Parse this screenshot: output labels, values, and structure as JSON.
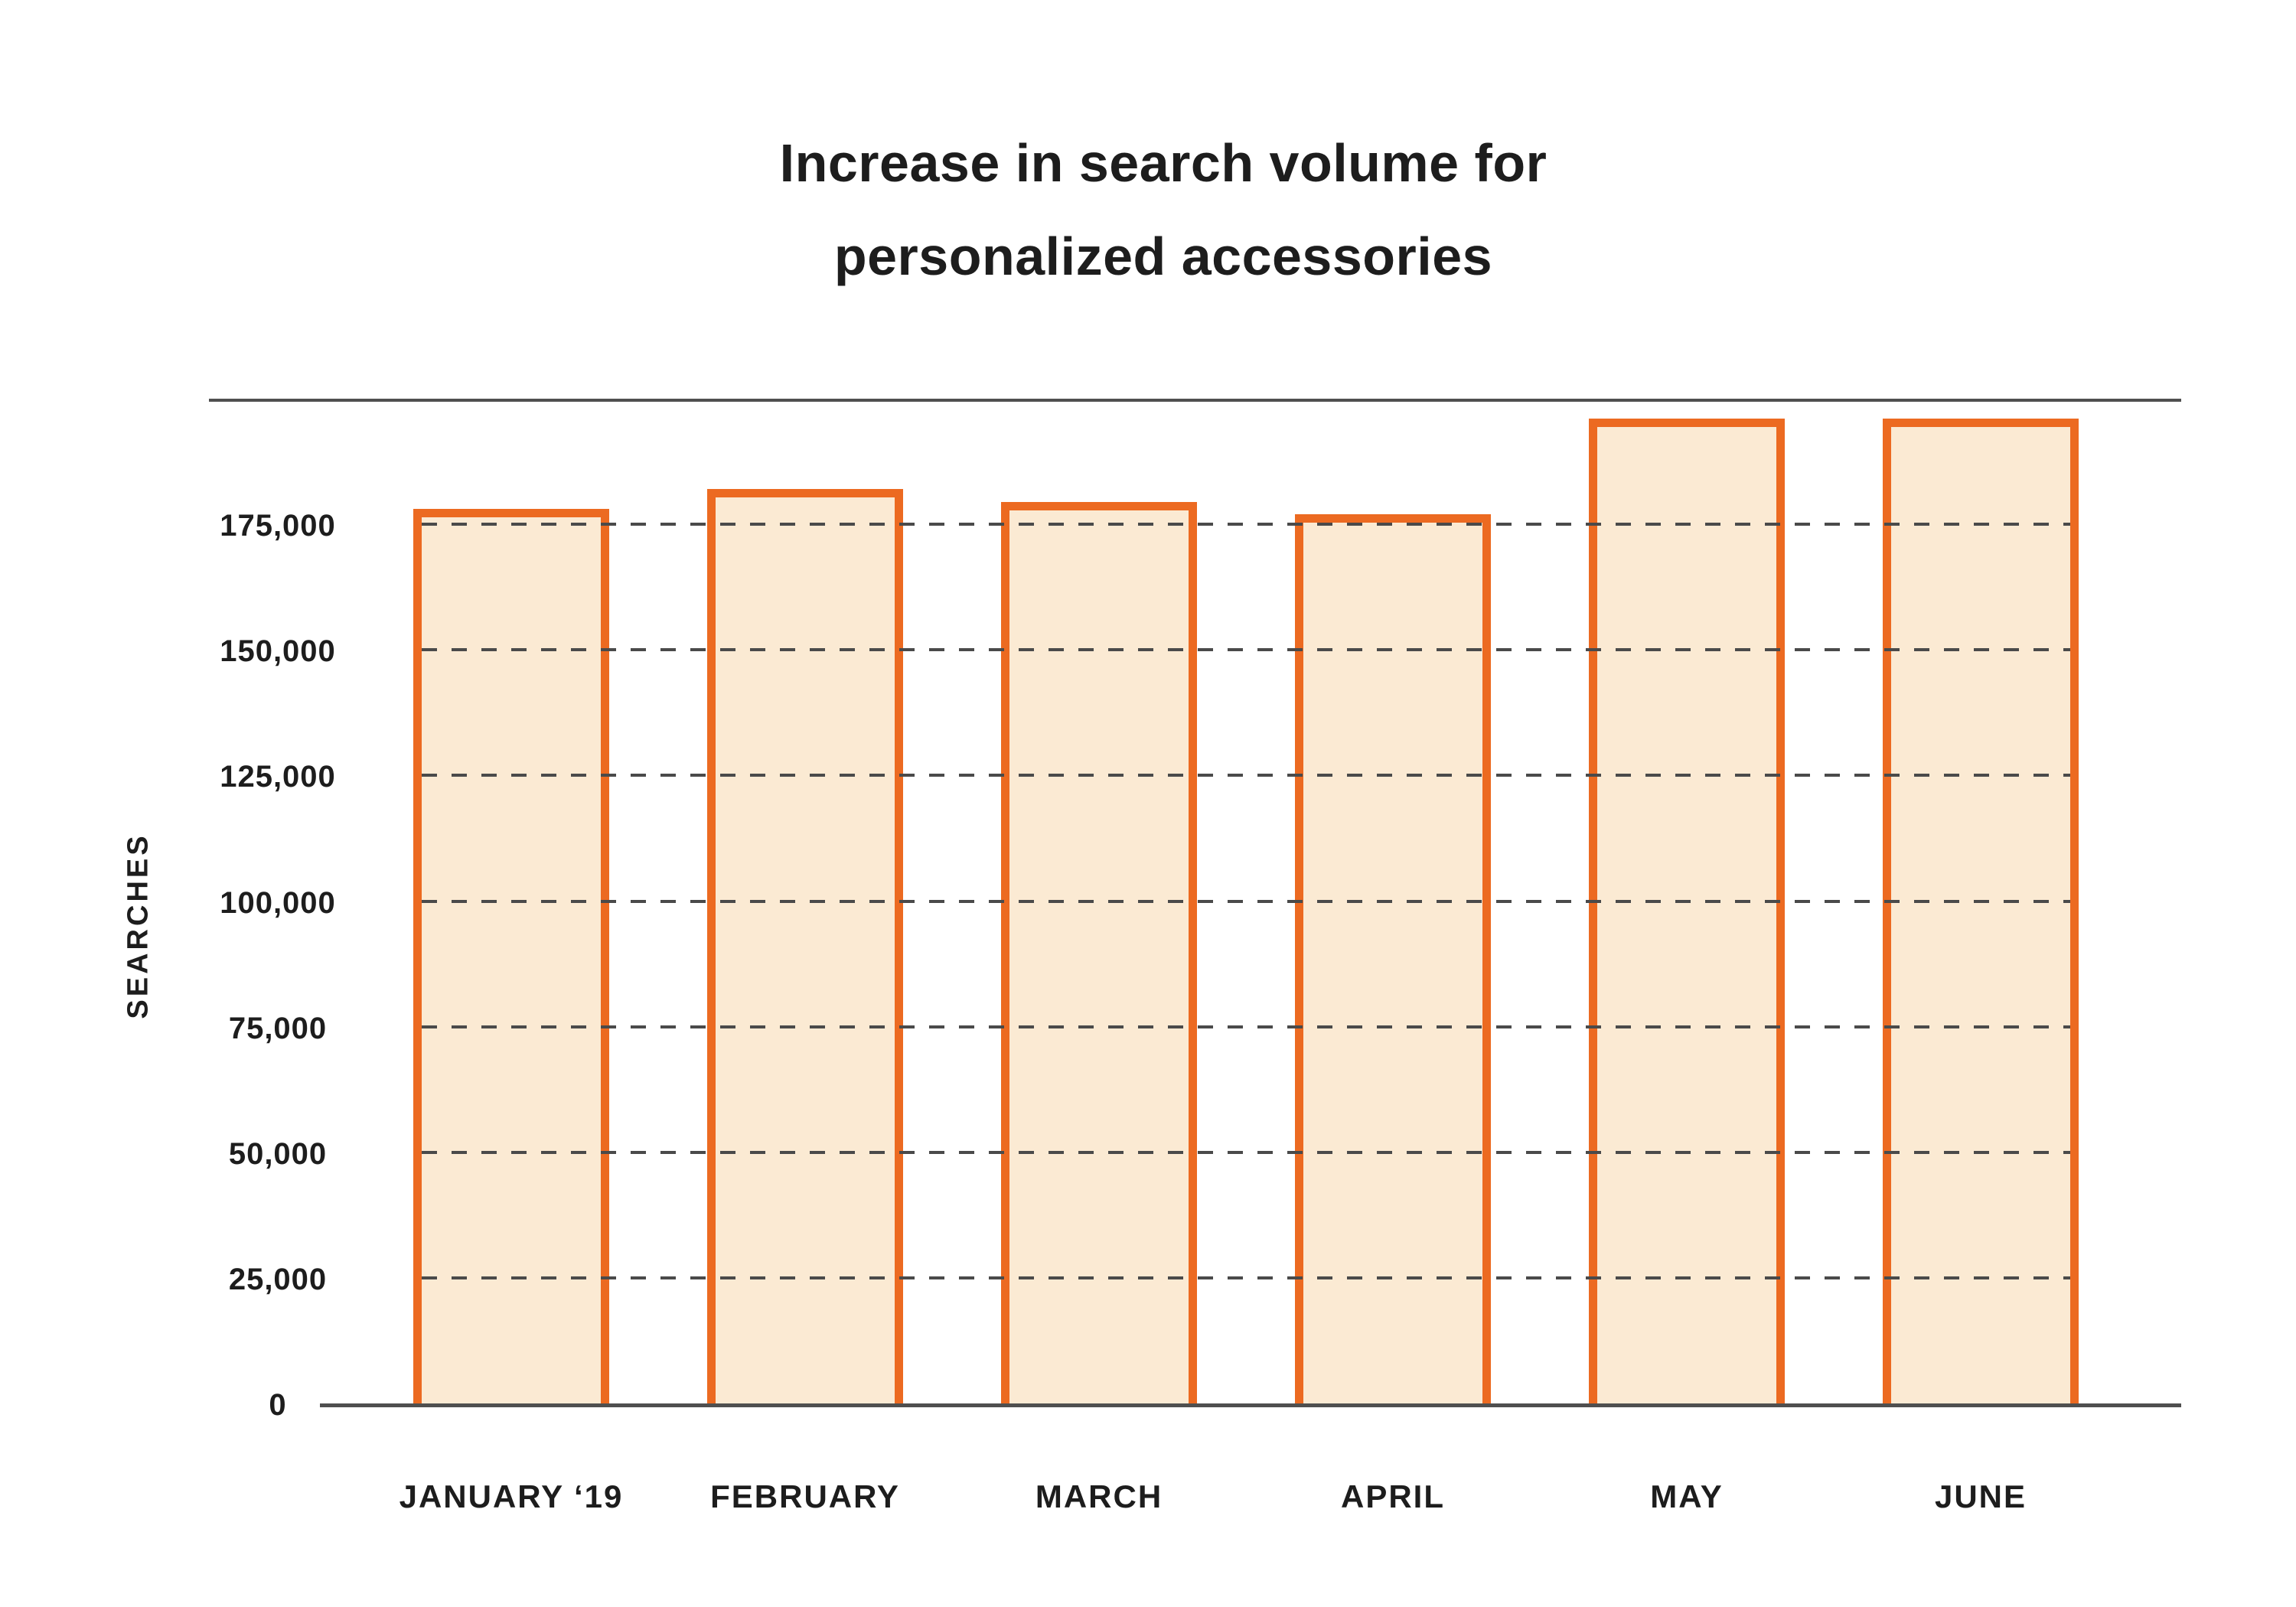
{
  "chart_data": {
    "type": "bar",
    "title": "Increase in search volume for personalized accessories",
    "title_lines": [
      "Increase in search volume for",
      "personalized accessories"
    ],
    "ylabel": "SEARCHES",
    "xlabel": "",
    "categories": [
      "JANUARY ‘19",
      "FEBRUARY",
      "MARCH",
      "APRIL",
      "MAY",
      "JUNE"
    ],
    "values": [
      178000,
      182000,
      179500,
      177000,
      196000,
      196000
    ],
    "ylim": [
      0,
      200000
    ],
    "yticks": [
      {
        "value": 0,
        "label": "0"
      },
      {
        "value": 25000,
        "label": "25,000"
      },
      {
        "value": 50000,
        "label": "50,000"
      },
      {
        "value": 75000,
        "label": "75,000"
      },
      {
        "value": 100000,
        "label": "100,000"
      },
      {
        "value": 125000,
        "label": "125,000"
      },
      {
        "value": 150000,
        "label": "150,000"
      },
      {
        "value": 175000,
        "label": "175,000"
      }
    ],
    "grid": "horizontal dashed gridlines at 25,000 intervals, drawn over bars, spanning only the bar region",
    "legend": "none",
    "colors": {
      "bar_fill": "#FBEAD3",
      "bar_border": "#EC6A21",
      "grid_line": "#4A4A4A",
      "axis_line": "#4F4F4F",
      "text": "#1D1D1D",
      "background": "#FFFFFF"
    }
  }
}
